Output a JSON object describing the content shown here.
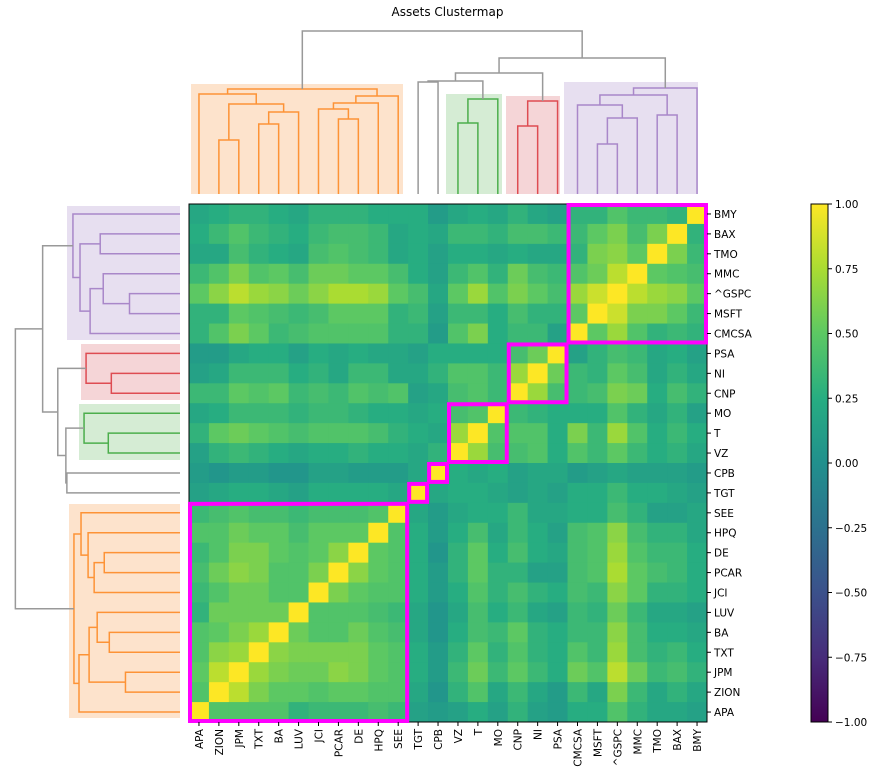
{
  "chart_data": {
    "type": "heatmap",
    "title": "Assets Clustermap",
    "columns": [
      "APA",
      "ZION",
      "JPM",
      "TXT",
      "BA",
      "LUV",
      "JCI",
      "PCAR",
      "DE",
      "HPQ",
      "SEE",
      "TGT",
      "CPB",
      "VZ",
      "T",
      "MO",
      "CNP",
      "NI",
      "PSA",
      "CMCSA",
      "MSFT",
      "^GSPC",
      "MMC",
      "TMO",
      "BAX",
      "BMY"
    ],
    "rows": [
      "BMY",
      "BAX",
      "TMO",
      "MMC",
      "^GSPC",
      "MSFT",
      "CMCSA",
      "PSA",
      "NI",
      "CNP",
      "MO",
      "T",
      "VZ",
      "CPB",
      "TGT",
      "SEE",
      "HPQ",
      "DE",
      "PCAR",
      "JCI",
      "LUV",
      "BA",
      "TXT",
      "JPM",
      "ZION",
      "APA"
    ],
    "values": [
      [
        0.2,
        0.25,
        0.3,
        0.3,
        0.25,
        0.2,
        0.3,
        0.3,
        0.3,
        0.25,
        0.25,
        0.25,
        0.1,
        0.2,
        0.25,
        0.2,
        0.3,
        0.2,
        0.15,
        0.3,
        0.3,
        0.45,
        0.35,
        0.35,
        0.3,
        1
      ],
      [
        0.25,
        0.35,
        0.45,
        0.35,
        0.3,
        0.25,
        0.35,
        0.4,
        0.4,
        0.35,
        0.2,
        0.25,
        0.2,
        0.35,
        0.35,
        0.3,
        0.4,
        0.4,
        0.35,
        0.35,
        0.5,
        0.6,
        0.4,
        0.6,
        1,
        0.3
      ],
      [
        0.2,
        0.2,
        0.4,
        0.3,
        0.25,
        0.2,
        0.4,
        0.45,
        0.4,
        0.35,
        0.2,
        0.25,
        0.15,
        0.25,
        0.25,
        0.2,
        0.25,
        0.2,
        0.2,
        0.3,
        0.6,
        0.65,
        0.5,
        1,
        0.6,
        0.35
      ],
      [
        0.35,
        0.45,
        0.6,
        0.45,
        0.5,
        0.4,
        0.55,
        0.55,
        0.5,
        0.5,
        0.4,
        0.25,
        0.15,
        0.35,
        0.45,
        0.3,
        0.55,
        0.4,
        0.35,
        0.45,
        0.55,
        0.8,
        1,
        0.5,
        0.45,
        0.4
      ],
      [
        0.5,
        0.65,
        0.8,
        0.7,
        0.65,
        0.55,
        0.65,
        0.75,
        0.75,
        0.7,
        0.5,
        0.4,
        0.2,
        0.5,
        0.7,
        0.45,
        0.6,
        0.5,
        0.4,
        0.7,
        0.85,
        1,
        0.8,
        0.7,
        0.65,
        0.5
      ],
      [
        0.3,
        0.3,
        0.5,
        0.45,
        0.4,
        0.35,
        0.4,
        0.5,
        0.5,
        0.5,
        0.3,
        0.35,
        0.15,
        0.35,
        0.35,
        0.25,
        0.4,
        0.3,
        0.3,
        0.5,
        1,
        0.85,
        0.6,
        0.6,
        0.5,
        0.35
      ],
      [
        0.3,
        0.45,
        0.6,
        0.5,
        0.35,
        0.4,
        0.45,
        0.45,
        0.45,
        0.45,
        0.3,
        0.3,
        0.1,
        0.45,
        0.6,
        0.25,
        0.35,
        0.35,
        0.15,
        1,
        0.5,
        0.7,
        0.45,
        0.3,
        0.35,
        0.3
      ],
      [
        0.1,
        0.1,
        0.2,
        0.25,
        0.25,
        0.15,
        0.25,
        0.2,
        0.25,
        0.2,
        0.2,
        0.15,
        0.25,
        0.25,
        0.25,
        0.25,
        0.4,
        0.55,
        1,
        0.15,
        0.3,
        0.4,
        0.35,
        0.2,
        0.25,
        0.15
      ],
      [
        0.15,
        0.2,
        0.35,
        0.35,
        0.35,
        0.25,
        0.3,
        0.2,
        0.35,
        0.35,
        0.2,
        0.2,
        0.3,
        0.45,
        0.45,
        0.35,
        0.7,
        1,
        0.55,
        0.35,
        0.3,
        0.5,
        0.4,
        0.2,
        0.3,
        0.2
      ],
      [
        0.35,
        0.35,
        0.5,
        0.45,
        0.5,
        0.35,
        0.4,
        0.35,
        0.45,
        0.4,
        0.45,
        0.15,
        0.2,
        0.4,
        0.45,
        0.35,
        1,
        0.7,
        0.4,
        0.35,
        0.4,
        0.6,
        0.55,
        0.25,
        0.4,
        0.3
      ],
      [
        0.2,
        0.25,
        0.35,
        0.35,
        0.35,
        0.3,
        0.35,
        0.35,
        0.3,
        0.25,
        0.25,
        0.2,
        0.25,
        0.4,
        0.45,
        1,
        0.35,
        0.3,
        0.25,
        0.25,
        0.25,
        0.45,
        0.3,
        0.2,
        0.3,
        0.15
      ],
      [
        0.3,
        0.5,
        0.55,
        0.5,
        0.45,
        0.4,
        0.45,
        0.45,
        0.45,
        0.4,
        0.3,
        0.25,
        0.2,
        0.7,
        1,
        0.45,
        0.45,
        0.45,
        0.25,
        0.6,
        0.35,
        0.7,
        0.45,
        0.25,
        0.35,
        0.25
      ],
      [
        0.15,
        0.3,
        0.35,
        0.3,
        0.25,
        0.2,
        0.25,
        0.25,
        0.3,
        0.25,
        0.25,
        0.2,
        0.3,
        1,
        0.7,
        0.4,
        0.4,
        0.45,
        0.25,
        0.45,
        0.35,
        0.5,
        0.35,
        0.25,
        0.3,
        0.2
      ],
      [
        0.1,
        0.05,
        0.1,
        0.1,
        0.05,
        0.05,
        0.15,
        0.15,
        0.1,
        0.1,
        0.1,
        0.2,
        1,
        0.25,
        0.2,
        0.25,
        0.15,
        0.2,
        0.2,
        0.1,
        0.15,
        0.2,
        0.15,
        0.15,
        0.15,
        0.1
      ],
      [
        0.15,
        0.2,
        0.25,
        0.25,
        0.2,
        0.15,
        0.25,
        0.25,
        0.25,
        0.25,
        0.2,
        1,
        0.2,
        0.25,
        0.25,
        0.2,
        0.15,
        0.2,
        0.15,
        0.25,
        0.25,
        0.35,
        0.25,
        0.25,
        0.2,
        0.15
      ],
      [
        0.35,
        0.4,
        0.45,
        0.4,
        0.4,
        0.35,
        0.4,
        0.4,
        0.4,
        0.45,
        1,
        0.2,
        0.1,
        0.2,
        0.25,
        0.25,
        0.35,
        0.2,
        0.2,
        0.25,
        0.25,
        0.4,
        0.3,
        0.15,
        0.15,
        0.2
      ],
      [
        0.45,
        0.45,
        0.55,
        0.5,
        0.5,
        0.4,
        0.5,
        0.5,
        0.5,
        1,
        0.45,
        0.25,
        0.1,
        0.25,
        0.4,
        0.2,
        0.35,
        0.25,
        0.15,
        0.4,
        0.45,
        0.65,
        0.4,
        0.3,
        0.3,
        0.2
      ],
      [
        0.35,
        0.45,
        0.6,
        0.6,
        0.5,
        0.45,
        0.5,
        0.65,
        1,
        0.5,
        0.45,
        0.25,
        0.05,
        0.3,
        0.5,
        0.25,
        0.4,
        0.25,
        0.2,
        0.4,
        0.45,
        0.7,
        0.45,
        0.35,
        0.35,
        0.25
      ],
      [
        0.4,
        0.55,
        0.65,
        0.6,
        0.45,
        0.45,
        0.6,
        1,
        0.65,
        0.5,
        0.45,
        0.25,
        0.1,
        0.3,
        0.5,
        0.3,
        0.3,
        0.15,
        0.15,
        0.4,
        0.45,
        0.75,
        0.5,
        0.4,
        0.35,
        0.25
      ],
      [
        0.35,
        0.45,
        0.55,
        0.55,
        0.45,
        0.45,
        1,
        0.6,
        0.5,
        0.45,
        0.45,
        0.25,
        0.1,
        0.25,
        0.45,
        0.3,
        0.4,
        0.3,
        0.25,
        0.4,
        0.35,
        0.65,
        0.5,
        0.3,
        0.3,
        0.25
      ],
      [
        0.3,
        0.55,
        0.55,
        0.55,
        0.55,
        1,
        0.45,
        0.45,
        0.45,
        0.4,
        0.35,
        0.2,
        0.05,
        0.2,
        0.4,
        0.25,
        0.35,
        0.2,
        0.15,
        0.35,
        0.3,
        0.55,
        0.35,
        0.2,
        0.2,
        0.15
      ],
      [
        0.45,
        0.5,
        0.6,
        0.7,
        1,
        0.55,
        0.45,
        0.45,
        0.55,
        0.45,
        0.4,
        0.2,
        0.05,
        0.25,
        0.4,
        0.35,
        0.5,
        0.3,
        0.25,
        0.35,
        0.35,
        0.65,
        0.4,
        0.25,
        0.25,
        0.2
      ],
      [
        0.45,
        0.65,
        0.7,
        1,
        0.65,
        0.6,
        0.6,
        0.6,
        0.6,
        0.5,
        0.45,
        0.25,
        0.1,
        0.3,
        0.5,
        0.3,
        0.45,
        0.3,
        0.25,
        0.45,
        0.35,
        0.7,
        0.4,
        0.3,
        0.35,
        0.25
      ],
      [
        0.5,
        0.8,
        1,
        0.7,
        0.6,
        0.55,
        0.55,
        0.65,
        0.6,
        0.5,
        0.45,
        0.25,
        0.1,
        0.35,
        0.55,
        0.35,
        0.5,
        0.35,
        0.25,
        0.55,
        0.45,
        0.8,
        0.55,
        0.35,
        0.4,
        0.3
      ],
      [
        0.45,
        1,
        0.8,
        0.6,
        0.5,
        0.5,
        0.45,
        0.5,
        0.5,
        0.45,
        0.45,
        0.2,
        0.05,
        0.3,
        0.45,
        0.2,
        0.35,
        0.2,
        0.1,
        0.35,
        0.2,
        0.6,
        0.35,
        0.2,
        0.3,
        0.2
      ],
      [
        1,
        0.45,
        0.45,
        0.45,
        0.45,
        0.3,
        0.35,
        0.35,
        0.35,
        0.4,
        0.35,
        0.15,
        0.1,
        0.15,
        0.25,
        0.15,
        0.3,
        0.15,
        0.1,
        0.25,
        0.25,
        0.45,
        0.3,
        0.2,
        0.2,
        0.15
      ]
    ],
    "colormap": "viridis",
    "vmin": -1,
    "vmax": 1,
    "colorbar_ticks": [
      "1.00",
      "0.75",
      "0.50",
      "0.25",
      "0.00",
      "−0.25",
      "−0.50",
      "−0.75",
      "−1.00"
    ],
    "colorbar_tick_values": [
      1,
      0.75,
      0.5,
      0.25,
      0,
      -0.25,
      -0.5,
      -0.75,
      -1
    ],
    "clusters": [
      {
        "members": [
          "APA",
          "ZION",
          "JPM",
          "TXT",
          "BA",
          "LUV",
          "JCI",
          "PCAR",
          "DE",
          "HPQ",
          "SEE"
        ],
        "color": "#ff7f0e"
      },
      {
        "members": [
          "TGT"
        ],
        "color": "#999999"
      },
      {
        "members": [
          "CPB"
        ],
        "color": "#999999"
      },
      {
        "members": [
          "VZ",
          "T",
          "MO"
        ],
        "color": "#2ca02c"
      },
      {
        "members": [
          "CNP",
          "NI",
          "PSA"
        ],
        "color": "#d62728"
      },
      {
        "members": [
          "CMCSA",
          "MSFT",
          "^GSPC",
          "MMC",
          "TMO",
          "BAX",
          "BMY"
        ],
        "color": "#9467bd"
      }
    ],
    "highlight_color": "#ff00ff"
  }
}
